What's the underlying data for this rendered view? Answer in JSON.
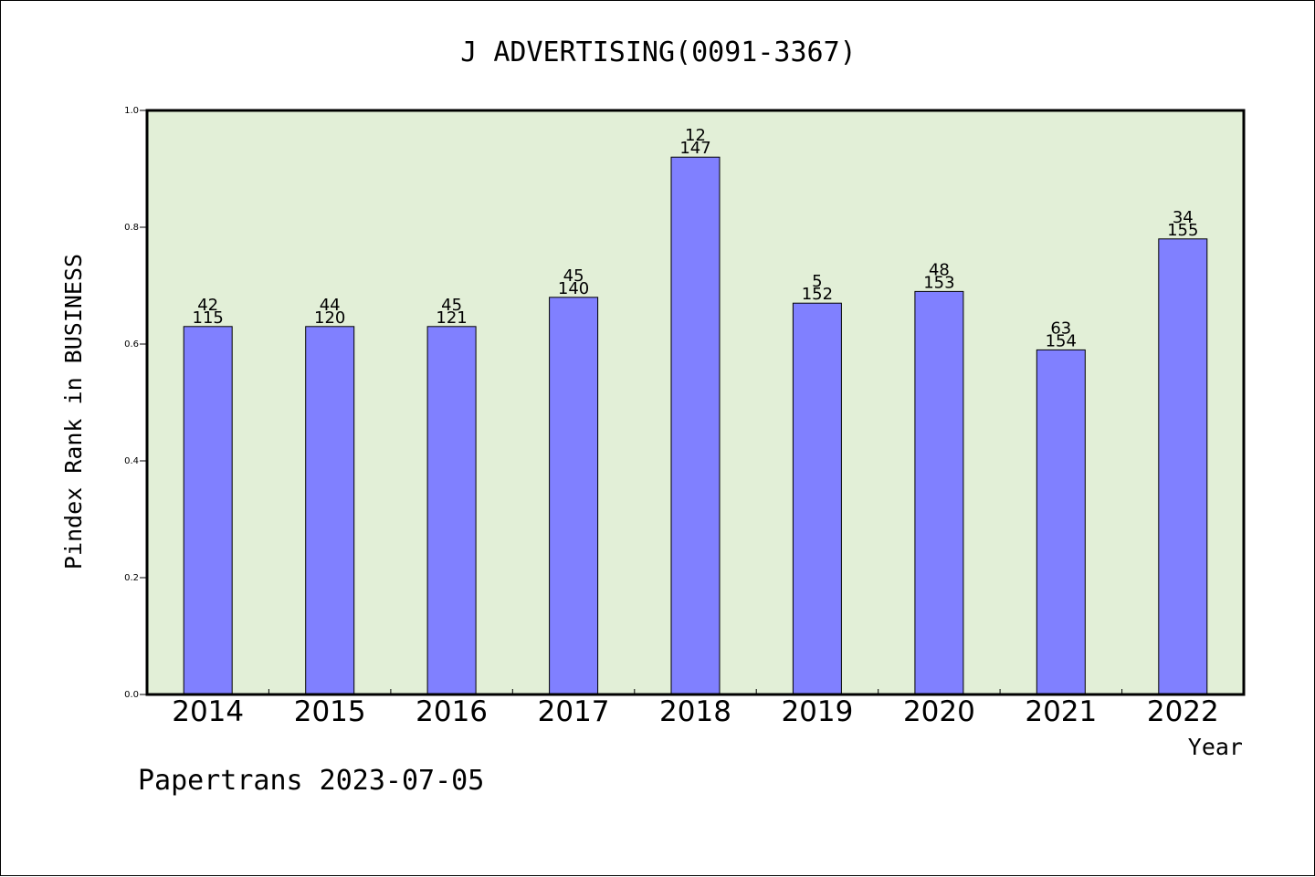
{
  "chart_data": {
    "type": "bar",
    "title": "J ADVERTISING(0091-3367)",
    "xlabel": "Year",
    "ylabel": "Pindex Rank in BUSINESS",
    "ylim": [
      0,
      1.0
    ],
    "yticks": [
      "0.0",
      "0.2",
      "0.4",
      "0.6",
      "0.8",
      "1.0"
    ],
    "grid": false,
    "categories": [
      "2014",
      "2015",
      "2016",
      "2017",
      "2018",
      "2019",
      "2020",
      "2021",
      "2022"
    ],
    "values": [
      0.63,
      0.63,
      0.63,
      0.68,
      0.92,
      0.67,
      0.69,
      0.59,
      0.78
    ],
    "bar_labels_top": [
      "42",
      "44",
      "45",
      "45",
      "12",
      "5",
      "48",
      "63",
      "34"
    ],
    "bar_labels_bottom": [
      "115",
      "120",
      "121",
      "140",
      "147",
      "152",
      "153",
      "154",
      "155"
    ],
    "colors": {
      "bar_fill": "#8080ff",
      "plot_background": "#e2efd7",
      "axis": "#000000"
    }
  },
  "footer": {
    "credit": "Papertrans 2023-07-05"
  }
}
